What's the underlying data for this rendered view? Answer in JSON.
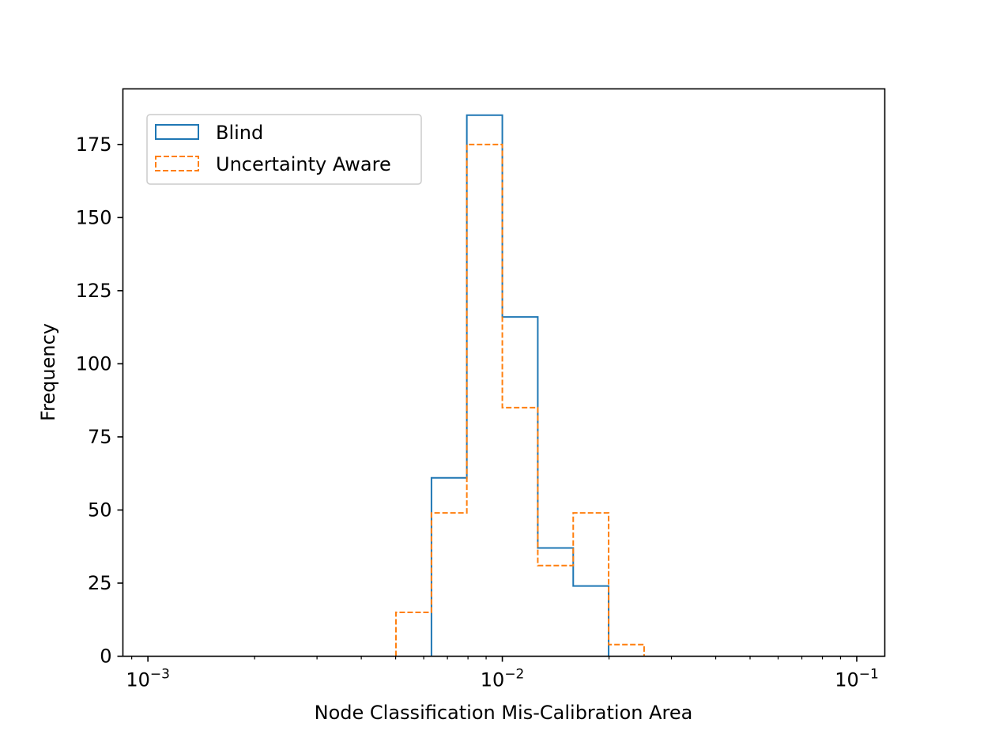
{
  "chart_data": {
    "type": "histogram",
    "xscale": "log",
    "xlim": [
      0.00085,
      0.12
    ],
    "ylim": [
      0,
      194
    ],
    "xlabel": "Node Classification Mis-Calibration Area",
    "ylabel": "Frequency",
    "x_ticks": [
      {
        "value": 0.001,
        "base": "10",
        "exp": "−3"
      },
      {
        "value": 0.01,
        "base": "10",
        "exp": "−2"
      },
      {
        "value": 0.1,
        "base": "10",
        "exp": "−1"
      }
    ],
    "y_ticks": [
      0,
      25,
      50,
      75,
      100,
      125,
      150,
      175
    ],
    "legend": {
      "location": "upper left",
      "entries": [
        "Blind",
        "Uncertainty Aware"
      ]
    },
    "series": [
      {
        "name": "Blind",
        "color": "#1f77b4",
        "linestyle": "solid",
        "bin_edges": [
          0.00631,
          0.00794,
          0.01,
          0.01259,
          0.01585,
          0.01995
        ],
        "counts": [
          61,
          185,
          116,
          37,
          24
        ]
      },
      {
        "name": "Uncertainty Aware",
        "color": "#ff7f0e",
        "linestyle": "dashed",
        "bin_edges": [
          0.00501,
          0.00631,
          0.00794,
          0.01,
          0.01259,
          0.01585,
          0.01995,
          0.02512
        ],
        "counts": [
          15,
          49,
          175,
          85,
          31,
          49,
          4
        ]
      }
    ]
  }
}
